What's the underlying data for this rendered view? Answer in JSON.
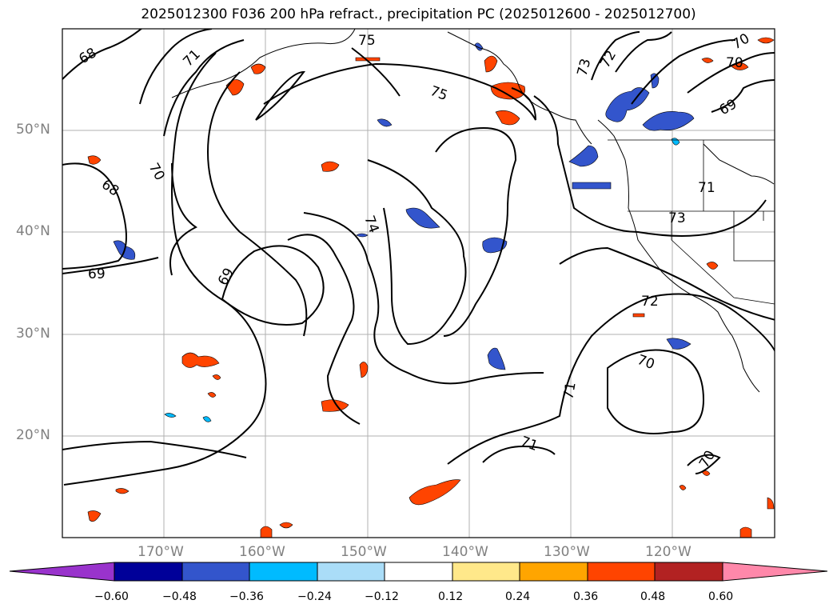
{
  "title": "2025012300 F036 200 hPa refract., precipitation PC (2025012600 - 2025012700)",
  "lat_labels": [
    "50°N",
    "40°N",
    "30°N",
    "20°N"
  ],
  "lon_labels": [
    "170°W",
    "160°W",
    "150°W",
    "140°W",
    "130°W",
    "120°W"
  ],
  "contour_labels": [
    "68",
    "71",
    "75",
    "75",
    "73",
    "72",
    "70",
    "70",
    "69",
    "70",
    "68",
    "69",
    "69",
    "74",
    "71",
    "73",
    "72",
    "70",
    "71",
    "71",
    "70"
  ],
  "colorbar": {
    "ticks": [
      "−0.60",
      "−0.48",
      "−0.36",
      "−0.24",
      "−0.12",
      "0.12",
      "0.24",
      "0.36",
      "0.48",
      "0.60"
    ],
    "colors": [
      "#9933cc",
      "#000099",
      "#3355cc",
      "#00bbff",
      "#aaddf8",
      "#ffffff",
      "#ffe88a",
      "#ffa500",
      "#ff4400",
      "#b22222",
      "#ff88aa"
    ]
  }
}
